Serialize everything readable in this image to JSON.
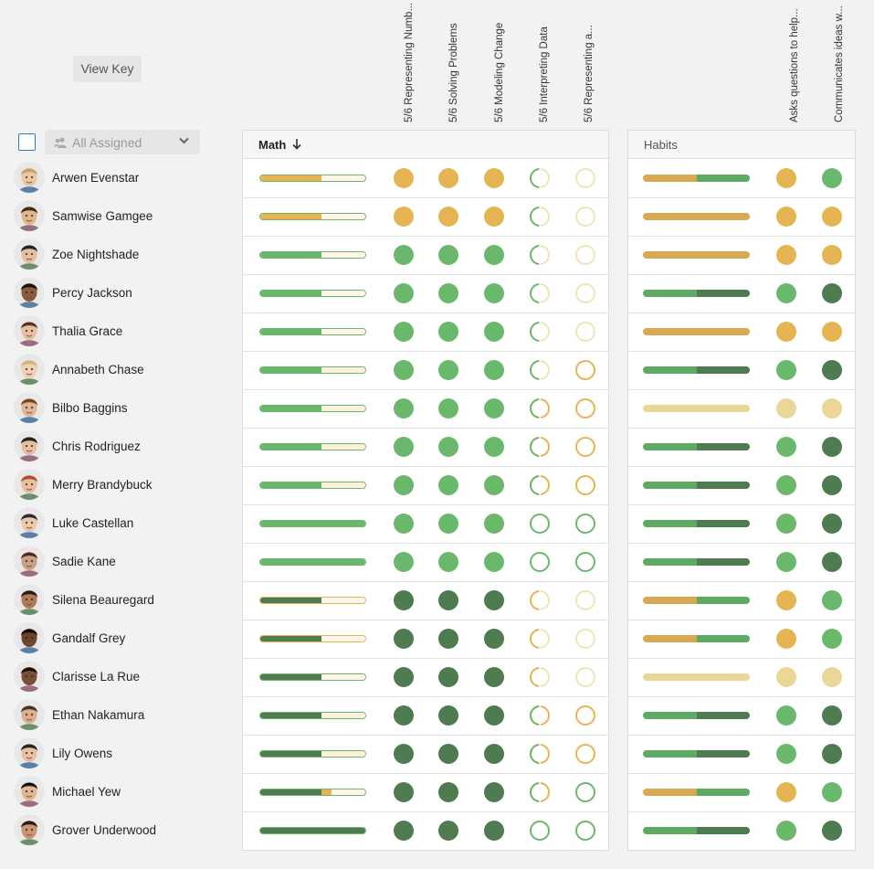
{
  "toolbar": {
    "view_key_label": "View Key"
  },
  "filter": {
    "assigned_label": "All Assigned"
  },
  "math": {
    "title": "Math",
    "standards": [
      "5/6 Representing Numb...",
      "5/6 Solving Problems",
      "5/6 Modeling Change",
      "5/6 Interpreting Data",
      "5/6 Representing a..."
    ]
  },
  "habits": {
    "title": "Habits",
    "standards": [
      "Asks questions to help...",
      "Communicates ideas w..."
    ]
  },
  "colors": {
    "dark_green": "#4e7b4f",
    "green": "#69b86b",
    "mid_green": "#5eaa62",
    "orange": "#e5b554",
    "light_orange": "#ead697",
    "pale_orange": "#f2e3b8",
    "empty": "#ffffff"
  },
  "students": [
    {
      "name": "Arwen Evenstar",
      "skin": "#e9c6a5",
      "hair": "#c8a064",
      "mbar": [
        [
          "o",
          0.58
        ],
        [
          "e",
          0.42
        ]
      ],
      "mbar_edge": "g",
      "m": [
        "O",
        "O",
        "O",
        "Hg",
        "Ep"
      ],
      "hbar": [
        [
          "ho",
          0.5
        ],
        [
          "hg",
          0.5
        ]
      ],
      "h": [
        "O",
        "G"
      ]
    },
    {
      "name": "Samwise Gamgee",
      "skin": "#e2b48e",
      "hair": "#3e2a1c",
      "mbar": [
        [
          "o",
          0.58
        ],
        [
          "e",
          0.42
        ]
      ],
      "mbar_edge": "g",
      "m": [
        "O",
        "O",
        "O",
        "Hg",
        "Ep"
      ],
      "hbar": [
        [
          "ho",
          1
        ]
      ],
      "h": [
        "O",
        "O"
      ]
    },
    {
      "name": "Zoe Nightshade",
      "skin": "#e4bea0",
      "hair": "#2b2321",
      "mbar": [
        [
          "g",
          0.58
        ],
        [
          "e",
          0.42
        ]
      ],
      "mbar_edge": "g",
      "m": [
        "G",
        "G",
        "G",
        "Hg",
        "Ep"
      ],
      "hbar": [
        [
          "ho",
          1
        ]
      ],
      "h": [
        "O",
        "O"
      ]
    },
    {
      "name": "Percy Jackson",
      "skin": "#8a5b3c",
      "hair": "#1c1410",
      "mbar": [
        [
          "g",
          0.58
        ],
        [
          "e",
          0.42
        ]
      ],
      "mbar_edge": "g",
      "m": [
        "G",
        "G",
        "G",
        "Hg",
        "Ep"
      ],
      "hbar": [
        [
          "hg",
          0.5
        ],
        [
          "hd",
          0.5
        ]
      ],
      "h": [
        "G",
        "D"
      ]
    },
    {
      "name": "Thalia Grace",
      "skin": "#e6bfa2",
      "hair": "#5a3422",
      "mbar": [
        [
          "g",
          0.58
        ],
        [
          "e",
          0.42
        ]
      ],
      "mbar_edge": "g",
      "m": [
        "G",
        "G",
        "G",
        "Hg",
        "Ep"
      ],
      "hbar": [
        [
          "ho",
          1
        ]
      ],
      "h": [
        "O",
        "O"
      ]
    },
    {
      "name": "Annabeth Chase",
      "skin": "#edd0b6",
      "hair": "#d5b27c",
      "mbar": [
        [
          "g",
          0.58
        ],
        [
          "eo",
          0.42
        ]
      ],
      "mbar_edge": "g",
      "m": [
        "G",
        "G",
        "G",
        "Hg",
        "Eo"
      ],
      "hbar": [
        [
          "hg",
          0.5
        ],
        [
          "hd",
          0.5
        ]
      ],
      "h": [
        "G",
        "D"
      ]
    },
    {
      "name": "Bilbo Baggins",
      "skin": "#e0b594",
      "hair": "#6e4b2e",
      "mbar": [
        [
          "g",
          0.58
        ],
        [
          "eo",
          0.42
        ]
      ],
      "mbar_edge": "g",
      "m": [
        "G",
        "G",
        "G",
        "Hgo",
        "Eo"
      ],
      "hbar": [
        [
          "hl",
          1
        ]
      ],
      "h": [
        "L",
        "L"
      ]
    },
    {
      "name": "Chris Rodriguez",
      "skin": "#e4bea0",
      "hair": "#2e2019",
      "mbar": [
        [
          "g",
          0.58
        ],
        [
          "eo",
          0.42
        ]
      ],
      "mbar_edge": "g",
      "m": [
        "G",
        "G",
        "G",
        "Hgo",
        "Eo"
      ],
      "hbar": [
        [
          "hg",
          0.5
        ],
        [
          "hd",
          0.5
        ]
      ],
      "h": [
        "G",
        "D"
      ]
    },
    {
      "name": "Merry Brandybuck",
      "skin": "#e8bea0",
      "hair": "#b04a2e",
      "mbar": [
        [
          "g",
          0.58
        ],
        [
          "eo",
          0.42
        ]
      ],
      "mbar_edge": "g",
      "m": [
        "G",
        "G",
        "G",
        "Hgo",
        "Eo"
      ],
      "hbar": [
        [
          "hg",
          0.5
        ],
        [
          "hd",
          0.5
        ]
      ],
      "h": [
        "G",
        "D"
      ]
    },
    {
      "name": "Luke Castellan",
      "skin": "#e9c8a8",
      "hair": "#2c2c33",
      "mbar": [
        [
          "g",
          1.0
        ]
      ],
      "mbar_edge": "g",
      "m": [
        "G",
        "G",
        "G",
        "Eg",
        "Eg"
      ],
      "hbar": [
        [
          "hg",
          0.5
        ],
        [
          "hd",
          0.5
        ]
      ],
      "h": [
        "G",
        "D"
      ]
    },
    {
      "name": "Sadie Kane",
      "skin": "#caa084",
      "hair": "#4a2f24",
      "mbar": [
        [
          "g",
          1.0
        ]
      ],
      "mbar_edge": "g",
      "m": [
        "G",
        "G",
        "G",
        "Eg",
        "Eg"
      ],
      "hbar": [
        [
          "hg",
          0.5
        ],
        [
          "hd",
          0.5
        ]
      ],
      "h": [
        "G",
        "D"
      ]
    },
    {
      "name": "Silena Beauregard",
      "skin": "#b07a56",
      "hair": "#2a1c15",
      "mbar": [
        [
          "d",
          0.58
        ],
        [
          "e",
          0.42
        ]
      ],
      "mbar_edge": "o",
      "m": [
        "D",
        "D",
        "D",
        "Ho",
        "Ep"
      ],
      "hbar": [
        [
          "ho",
          0.5
        ],
        [
          "hg",
          0.5
        ]
      ],
      "h": [
        "O",
        "G"
      ]
    },
    {
      "name": "Gandalf Grey",
      "skin": "#6b4430",
      "hair": "#140e0b",
      "mbar": [
        [
          "d",
          0.58
        ],
        [
          "e",
          0.42
        ]
      ],
      "mbar_edge": "o",
      "m": [
        "D",
        "D",
        "D",
        "Ho",
        "Ep"
      ],
      "hbar": [
        [
          "ho",
          0.5
        ],
        [
          "hg",
          0.5
        ]
      ],
      "h": [
        "O",
        "G"
      ]
    },
    {
      "name": "Clarisse La Rue",
      "skin": "#7a4e36",
      "hair": "#1a120d",
      "mbar": [
        [
          "d",
          0.58
        ],
        [
          "e",
          0.42
        ]
      ],
      "mbar_edge": "g",
      "m": [
        "D",
        "D",
        "D",
        "Ho",
        "Ep"
      ],
      "hbar": [
        [
          "hl",
          1
        ]
      ],
      "h": [
        "L",
        "L"
      ]
    },
    {
      "name": "Ethan Nakamura",
      "skin": "#dcae8c",
      "hair": "#4a3323",
      "mbar": [
        [
          "d",
          0.58
        ],
        [
          "eo",
          0.42
        ]
      ],
      "mbar_edge": "g",
      "m": [
        "D",
        "D",
        "D",
        "Hgo",
        "Eo"
      ],
      "hbar": [
        [
          "hg",
          0.5
        ],
        [
          "hd",
          0.5
        ]
      ],
      "h": [
        "G",
        "D"
      ]
    },
    {
      "name": "Lily Owens",
      "skin": "#e6c0a2",
      "hair": "#2f2119",
      "mbar": [
        [
          "d",
          0.58
        ],
        [
          "eo",
          0.42
        ]
      ],
      "mbar_edge": "g",
      "m": [
        "D",
        "D",
        "D",
        "Hgo",
        "Eo"
      ],
      "hbar": [
        [
          "hg",
          0.5
        ],
        [
          "hd",
          0.5
        ]
      ],
      "h": [
        "G",
        "D"
      ]
    },
    {
      "name": "Michael Yew",
      "skin": "#e2b690",
      "hair": "#16100c",
      "mbar": [
        [
          "d",
          0.58
        ],
        [
          "o",
          0.1
        ],
        [
          "e",
          0.32
        ]
      ],
      "mbar_edge": "g",
      "m": [
        "D",
        "D",
        "D",
        "Hgo",
        "Eg"
      ],
      "hbar": [
        [
          "ho",
          0.5
        ],
        [
          "hg",
          0.5
        ]
      ],
      "h": [
        "O",
        "G"
      ]
    },
    {
      "name": "Grover Underwood",
      "skin": "#c99472",
      "hair": "#2a1d15",
      "mbar": [
        [
          "d",
          1.0
        ]
      ],
      "mbar_edge": "g",
      "m": [
        "D",
        "D",
        "D",
        "Eg",
        "Eg"
      ],
      "hbar": [
        [
          "hg",
          0.5
        ],
        [
          "hd",
          0.5
        ]
      ],
      "h": [
        "G",
        "D"
      ]
    }
  ]
}
